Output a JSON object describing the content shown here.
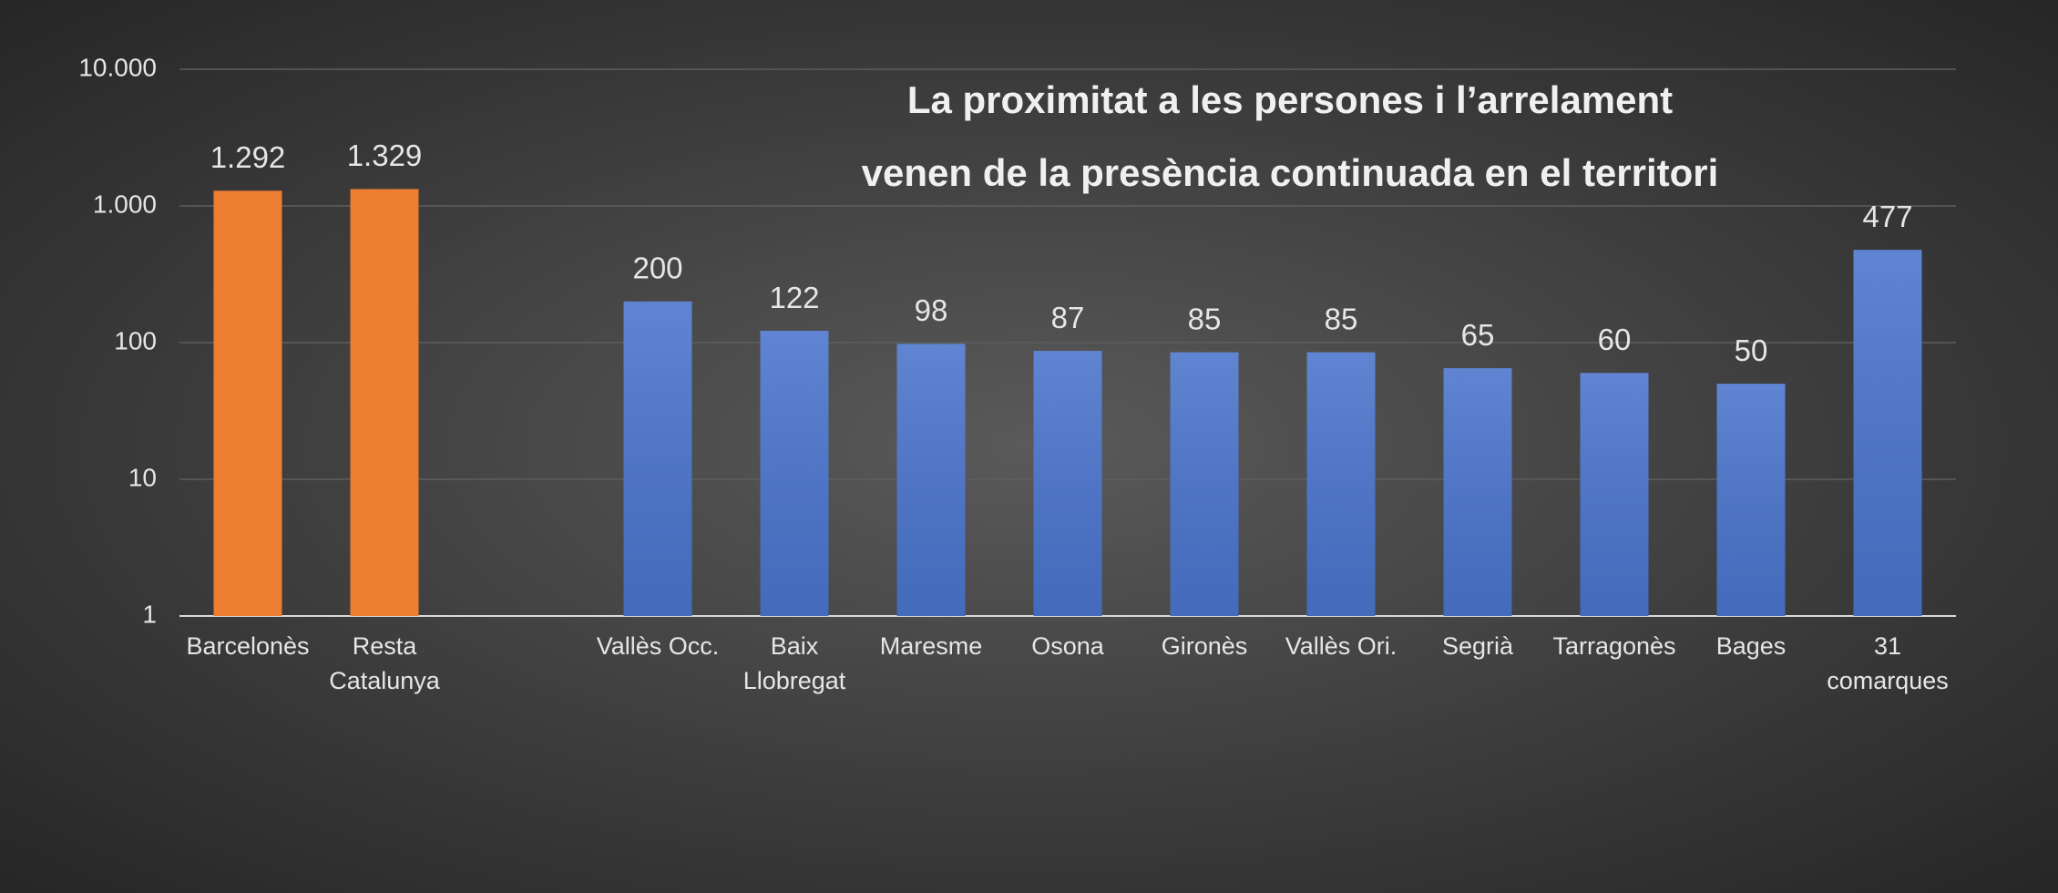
{
  "chart_data": {
    "type": "bar",
    "title": "La proximitat a les persones i l’arrelament\nvenen de la presència continuada en el territori",
    "categories": [
      "Barcelonès",
      "Resta\nCatalunya",
      null,
      "Vallès Occ.",
      "Baix\nLlobregat",
      "Maresme",
      "Osona",
      "Gironès",
      "Vallès Ori.",
      "Segrià",
      "Tarragonès",
      "Bages",
      "31\ncomarques"
    ],
    "values": [
      1292,
      1329,
      null,
      200,
      122,
      98,
      87,
      85,
      85,
      65,
      60,
      50,
      477
    ],
    "value_labels": [
      "1.292",
      "1.329",
      null,
      "200",
      "122",
      "98",
      "87",
      "85",
      "85",
      "65",
      "60",
      "50",
      "477"
    ],
    "colors": [
      "#ed7d31",
      "#ed7d31",
      null,
      "#4a74cc",
      "#4a74cc",
      "#4a74cc",
      "#4a74cc",
      "#4a74cc",
      "#4a74cc",
      "#4a74cc",
      "#4a74cc",
      "#4a74cc",
      "#4a74cc"
    ],
    "log_scale": true,
    "ylim": [
      1,
      10000
    ],
    "yticks": [
      1,
      10,
      100,
      {
        "value": 1000,
        "label": "1.000"
      },
      {
        "value": 10000,
        "label": "10.000"
      }
    ],
    "grid": true
  }
}
